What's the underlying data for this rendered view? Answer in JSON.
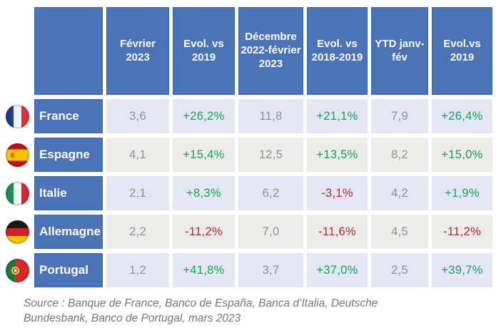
{
  "chart_data": {
    "type": "table",
    "title": "",
    "columns": [
      "Février 2023",
      "Evol. vs 2019",
      "Décembre 2022-février 2023",
      "Evol. vs 2018-2019",
      "YTD janv-fév",
      "Evol.vs 2019"
    ],
    "rows": [
      {
        "country": "France",
        "flag": "france-flag-icon",
        "values": [
          "3,6",
          "+26,2%",
          "11,8",
          "+21,1%",
          "7,9",
          "+26,4%"
        ]
      },
      {
        "country": "Espagne",
        "flag": "spain-flag-icon",
        "values": [
          "4,1",
          "+15,4%",
          "12,5",
          "+13,5%",
          "8,2",
          "+15,0%"
        ]
      },
      {
        "country": "Italie",
        "flag": "italy-flag-icon",
        "values": [
          "2,1",
          "+8,3%",
          "6,2",
          "-3,1%",
          "4,2",
          "+1,9%"
        ]
      },
      {
        "country": "Allemagne",
        "flag": "germany-flag-icon",
        "values": [
          "2,2",
          "-11,2%",
          "7,0",
          "-11,6%",
          "4,5",
          "-11,2%"
        ]
      },
      {
        "country": "Portugal",
        "flag": "portugal-flag-icon",
        "values": [
          "1,2",
          "+41,8%",
          "3,7",
          "+37,0%",
          "2,5",
          "+39,7%"
        ]
      }
    ],
    "layout_hints": {
      "legend": "none",
      "grid": "white gaps between cells",
      "positive_color": "#15a356",
      "negative_color": "#c1272d",
      "header_color": "#4a73b8",
      "row_alt_colors": [
        "#e4e7f2",
        "#ececea"
      ]
    }
  },
  "source": {
    "line1": "Source : Banque de France, Banco de España, Banca d’Italia,",
    "line2": "Deutsche Bundesbank, Banco de Portugal, mars 2023"
  }
}
